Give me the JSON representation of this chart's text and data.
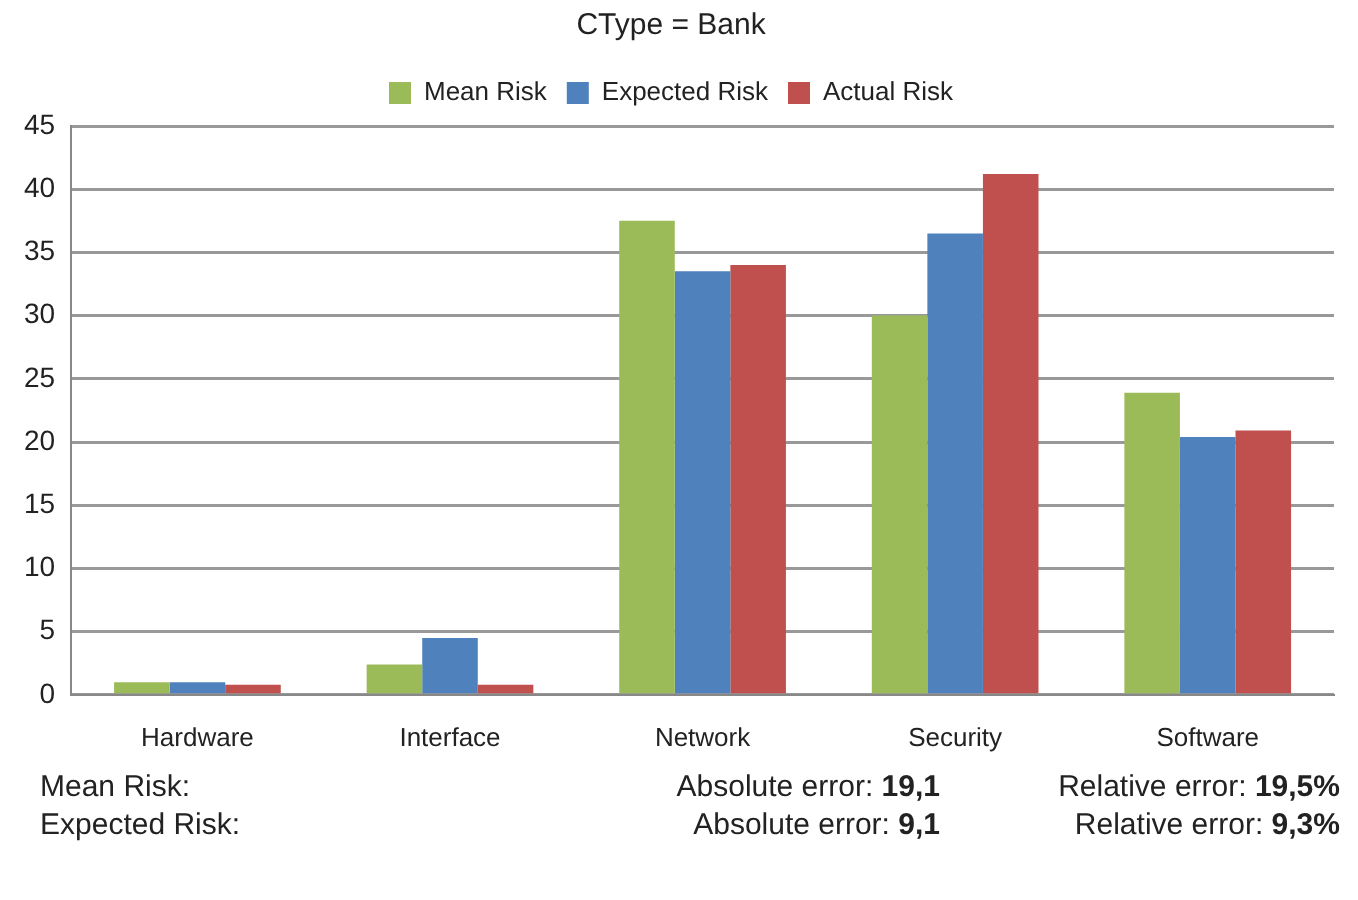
{
  "chart_data": {
    "type": "bar",
    "title": "CType = Bank",
    "categories": [
      "Hardware",
      "Interface",
      "Network",
      "Security",
      "Software"
    ],
    "series": [
      {
        "name": "Mean Risk",
        "color": "#9bbb59",
        "values": [
          1,
          2.4,
          37.5,
          30,
          23.9
        ]
      },
      {
        "name": "Expected Risk",
        "color": "#4f81bd",
        "values": [
          1,
          4.5,
          33.5,
          36.5,
          20.4
        ]
      },
      {
        "name": "Actual Risk",
        "color": "#c0504d",
        "values": [
          0.8,
          0.8,
          34,
          41.2,
          20.9
        ]
      }
    ],
    "ylim": [
      0,
      45
    ],
    "yticks": [
      0,
      5,
      10,
      15,
      20,
      25,
      30,
      35,
      40,
      45
    ],
    "grid": "y",
    "legend": "top",
    "annotations": [
      "Mean Risk:",
      "Absolute error: 19,1",
      "Relative error: 19,5%",
      "Expected Risk:",
      "Absolute error: 9,1",
      "Relative error: 9,3%"
    ]
  }
}
